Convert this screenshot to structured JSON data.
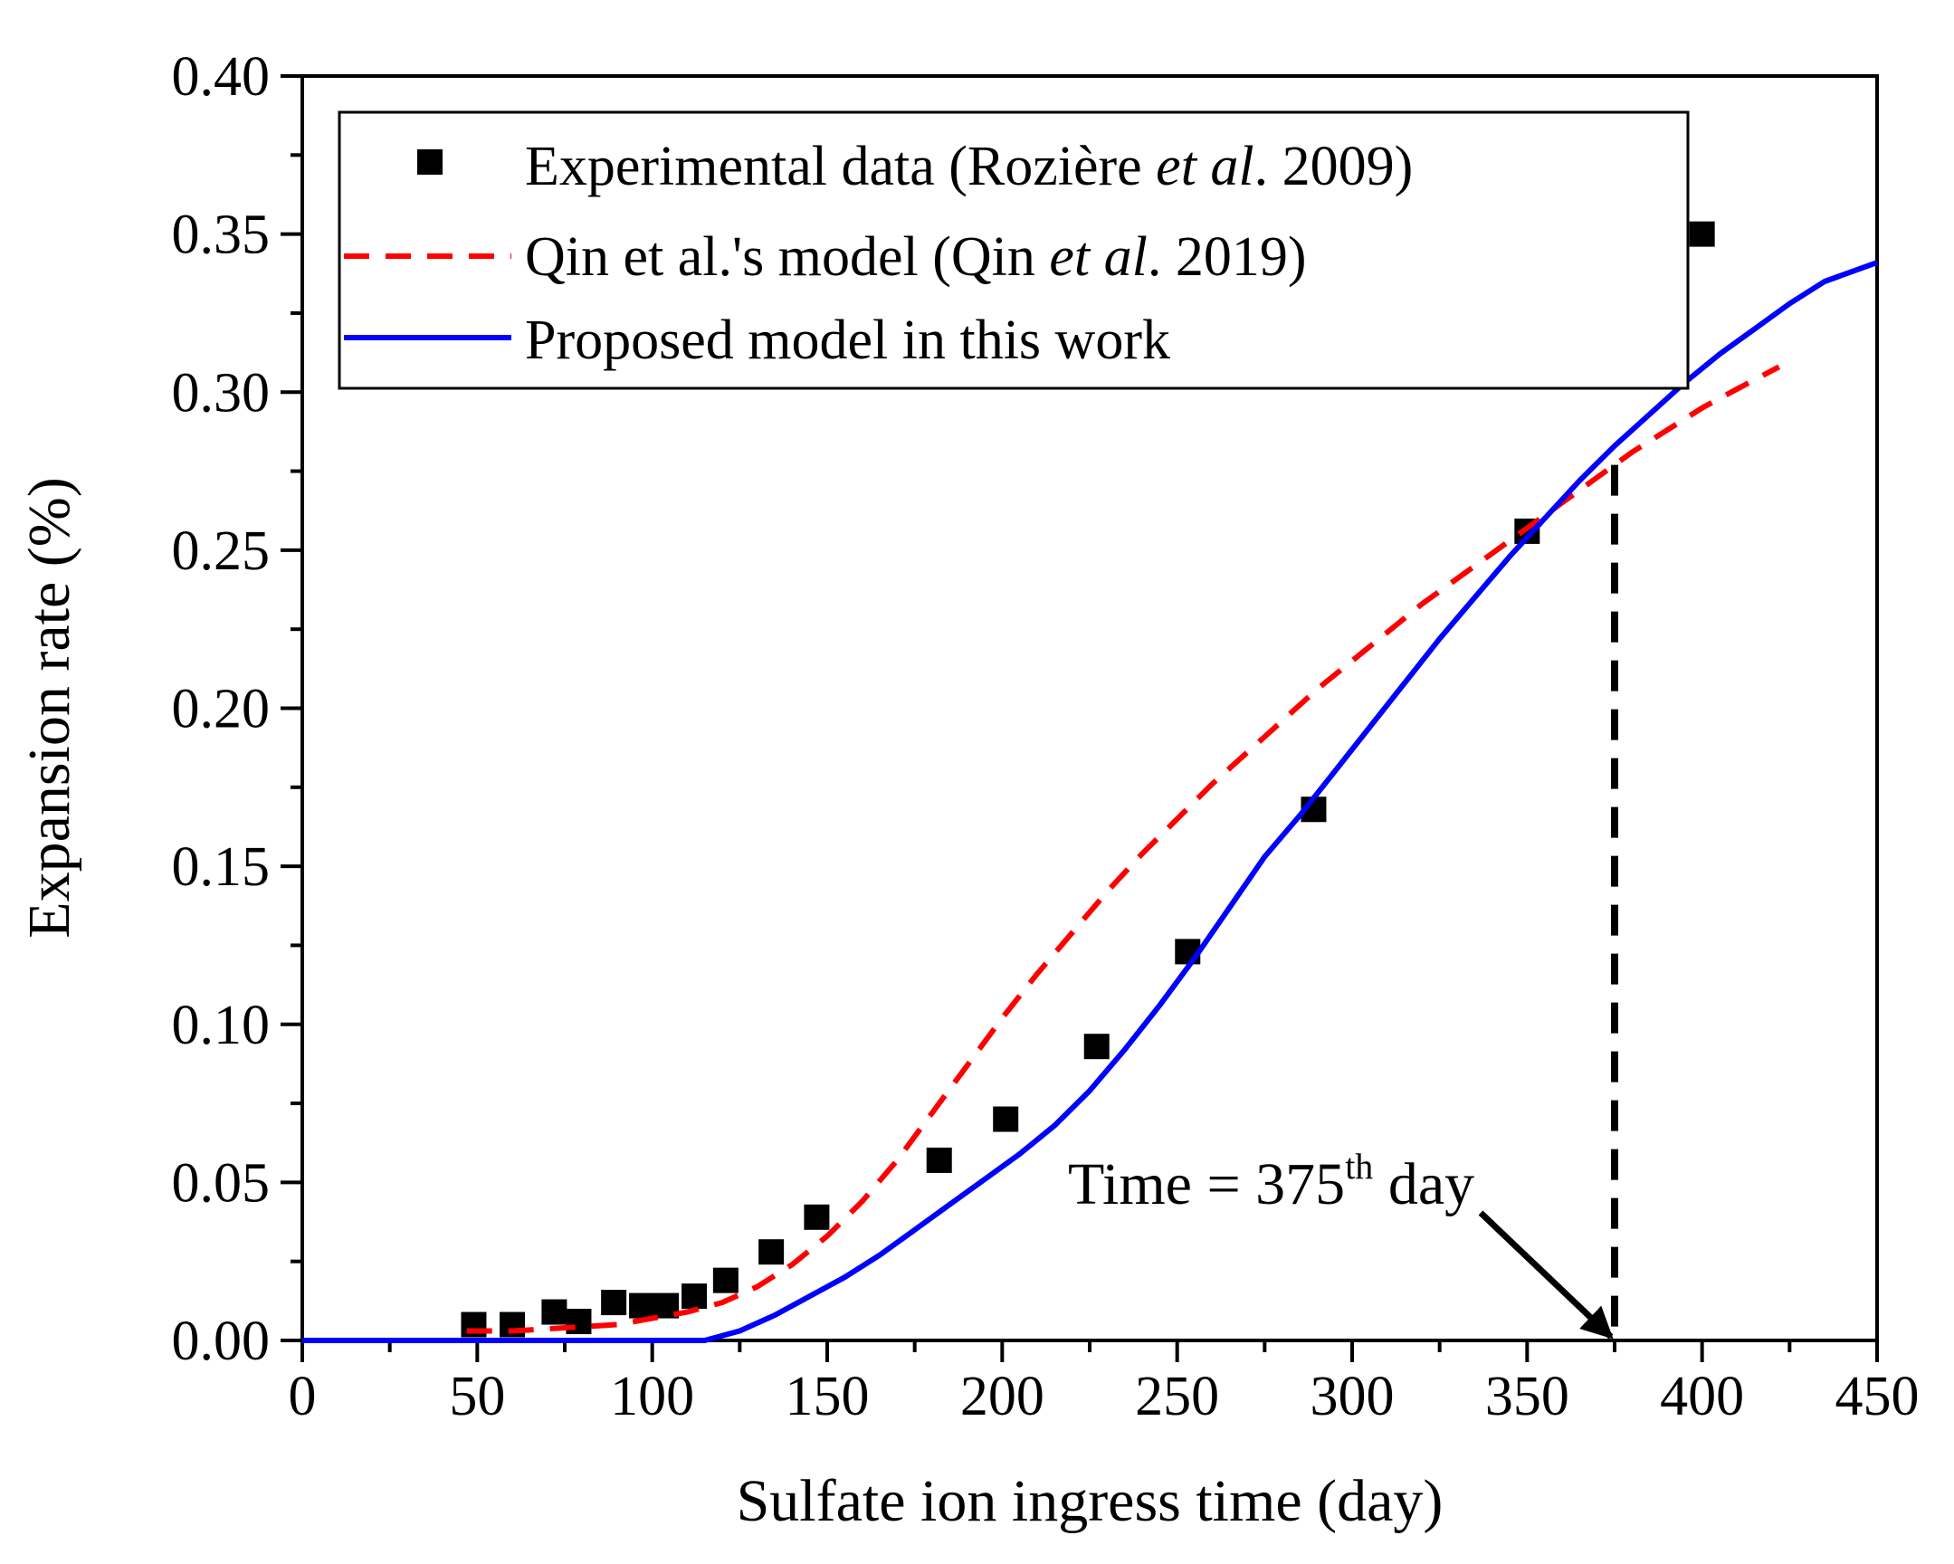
{
  "chart_data": {
    "type": "line",
    "title": "",
    "xlabel": "Sulfate ion  ingress time (day)",
    "ylabel": "Expansion rate (%)",
    "xlim": [
      0,
      450
    ],
    "ylim": [
      0,
      0.4
    ],
    "x_ticks": [
      "0",
      "50",
      "100",
      "150",
      "200",
      "250",
      "300",
      "350",
      "400",
      "450"
    ],
    "y_ticks": [
      "0.00",
      "0.05",
      "0.10",
      "0.15",
      "0.20",
      "0.25",
      "0.30",
      "0.35",
      "0.40"
    ],
    "grid": false,
    "legend": {
      "position": "top-left",
      "entries": [
        {
          "main": "Experimental data (Rozière ",
          "italic": "et al",
          "tail": ".  2009)"
        },
        {
          "main": "Qin et al.'s model (Qin ",
          "italic": "et al",
          "tail": ". 2019)"
        },
        {
          "main": "Proposed model in this work",
          "italic": "",
          "tail": ""
        }
      ]
    },
    "series": [
      {
        "name": "Experimental data (Rozière et al. 2009)",
        "style": "scatter-square",
        "color": "#000000",
        "points": [
          [
            49,
            0.005
          ],
          [
            60,
            0.005
          ],
          [
            72,
            0.009
          ],
          [
            79,
            0.006
          ],
          [
            89,
            0.012
          ],
          [
            97,
            0.011
          ],
          [
            104,
            0.011
          ],
          [
            112,
            0.014
          ],
          [
            121,
            0.019
          ],
          [
            134,
            0.028
          ],
          [
            147,
            0.039
          ],
          [
            182,
            0.057
          ],
          [
            201,
            0.07
          ],
          [
            227,
            0.093
          ],
          [
            253,
            0.123
          ],
          [
            289,
            0.168
          ],
          [
            350,
            0.256
          ],
          [
            400,
            0.35
          ]
        ]
      },
      {
        "name": "Qin et al.'s model (Qin et al. 2019)",
        "style": "dashed-line",
        "color": "#ff0000",
        "points": [
          [
            47,
            0.003
          ],
          [
            60,
            0.003
          ],
          [
            75,
            0.004
          ],
          [
            90,
            0.005
          ],
          [
            100,
            0.007
          ],
          [
            110,
            0.009
          ],
          [
            120,
            0.012
          ],
          [
            130,
            0.017
          ],
          [
            140,
            0.024
          ],
          [
            150,
            0.033
          ],
          [
            160,
            0.044
          ],
          [
            170,
            0.057
          ],
          [
            180,
            0.072
          ],
          [
            190,
            0.087
          ],
          [
            200,
            0.102
          ],
          [
            210,
            0.116
          ],
          [
            220,
            0.129
          ],
          [
            230,
            0.142
          ],
          [
            240,
            0.154
          ],
          [
            250,
            0.165
          ],
          [
            260,
            0.176
          ],
          [
            270,
            0.186
          ],
          [
            280,
            0.196
          ],
          [
            290,
            0.206
          ],
          [
            300,
            0.215
          ],
          [
            310,
            0.224
          ],
          [
            320,
            0.233
          ],
          [
            330,
            0.241
          ],
          [
            340,
            0.249
          ],
          [
            350,
            0.257
          ],
          [
            360,
            0.265
          ],
          [
            370,
            0.273
          ],
          [
            380,
            0.281
          ],
          [
            390,
            0.288
          ],
          [
            400,
            0.295
          ],
          [
            410,
            0.301
          ],
          [
            422,
            0.308
          ]
        ]
      },
      {
        "name": "Proposed model in this work",
        "style": "solid-line",
        "color": "#0000ff",
        "points": [
          [
            0,
            0
          ],
          [
            115,
            0
          ],
          [
            125,
            0.003
          ],
          [
            135,
            0.008
          ],
          [
            145,
            0.014
          ],
          [
            155,
            0.02
          ],
          [
            165,
            0.027
          ],
          [
            175,
            0.035
          ],
          [
            185,
            0.043
          ],
          [
            195,
            0.051
          ],
          [
            205,
            0.059
          ],
          [
            215,
            0.068
          ],
          [
            225,
            0.079
          ],
          [
            235,
            0.092
          ],
          [
            245,
            0.106
          ],
          [
            255,
            0.121
          ],
          [
            265,
            0.137
          ],
          [
            275,
            0.153
          ],
          [
            285,
            0.166
          ],
          [
            295,
            0.18
          ],
          [
            305,
            0.194
          ],
          [
            315,
            0.208
          ],
          [
            325,
            0.222
          ],
          [
            335,
            0.235
          ],
          [
            345,
            0.248
          ],
          [
            355,
            0.26
          ],
          [
            365,
            0.272
          ],
          [
            375,
            0.283
          ],
          [
            385,
            0.293
          ],
          [
            395,
            0.303
          ],
          [
            405,
            0.312
          ],
          [
            415,
            0.32
          ],
          [
            425,
            0.328
          ],
          [
            435,
            0.335
          ],
          [
            450,
            0.341
          ]
        ]
      }
    ],
    "annotations": [
      {
        "text": "Time = 375",
        "sup": "th",
        "suffix": " day",
        "x": 375,
        "vline_to_y": 0.277,
        "arrow_to": [
          375,
          0
        ]
      }
    ]
  }
}
